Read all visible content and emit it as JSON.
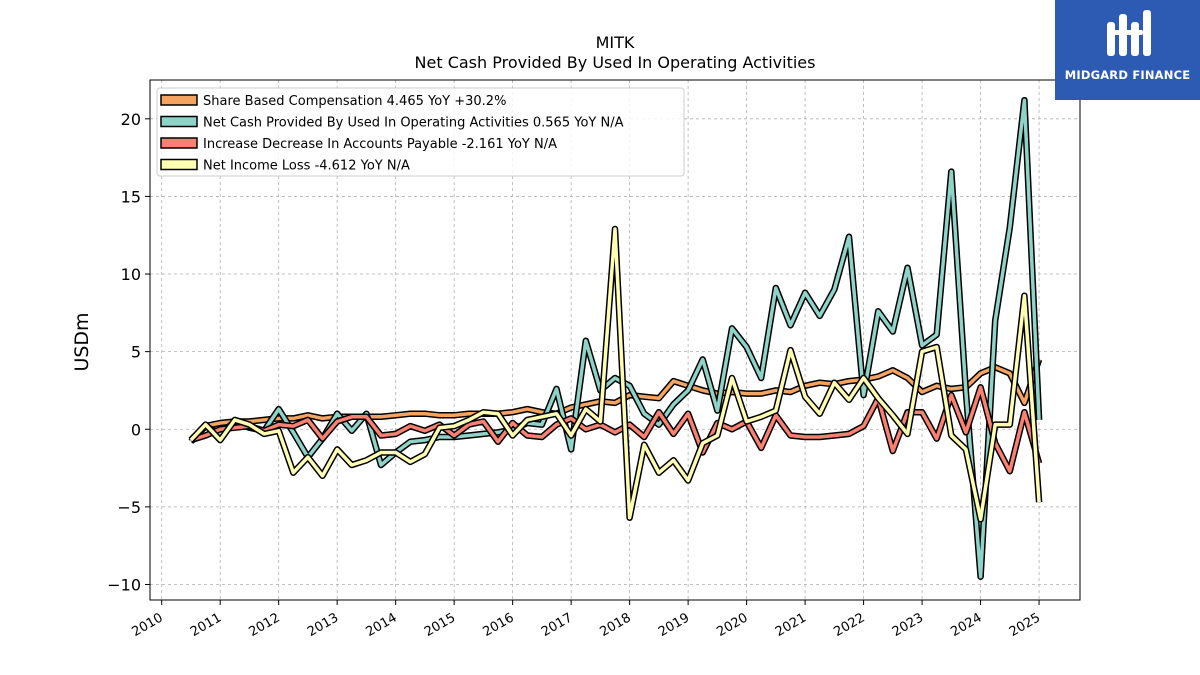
{
  "chart_data": {
    "type": "line",
    "title": "MITK",
    "subtitle": "Net Cash Provided By Used In Operating Activities",
    "ylabel": "USDm",
    "xlabel": "",
    "ylim": [
      -11,
      22.5
    ],
    "xlim": [
      2009.8,
      2025.7
    ],
    "yticks": [
      -10,
      -5,
      0,
      5,
      10,
      15,
      20
    ],
    "ytick_labels": [
      "−10",
      "−5",
      "0",
      "5",
      "10",
      "15",
      "20"
    ],
    "xticks": [
      2010,
      2011,
      2012,
      2013,
      2014,
      2015,
      2016,
      2017,
      2018,
      2019,
      2020,
      2021,
      2022,
      2023,
      2024,
      2025
    ],
    "xtick_labels": [
      "2010",
      "2011",
      "2012",
      "2013",
      "2014",
      "2015",
      "2016",
      "2017",
      "2018",
      "2019",
      "2020",
      "2021",
      "2022",
      "2023",
      "2024",
      "2025"
    ],
    "grid": true,
    "legend_position": "top-left",
    "series": [
      {
        "name": "Share Based Compensation",
        "legend": "Share Based Compensation  4.465 YoY +30.2%",
        "color": "#f4a460",
        "x": [
          2010.5,
          2010.75,
          2011.0,
          2011.25,
          2011.5,
          2011.75,
          2012.0,
          2012.25,
          2012.5,
          2012.75,
          2013.0,
          2013.25,
          2013.5,
          2013.75,
          2014.0,
          2014.25,
          2014.5,
          2014.75,
          2015.0,
          2015.25,
          2015.5,
          2015.75,
          2016.0,
          2016.25,
          2016.5,
          2016.75,
          2017.0,
          2017.25,
          2017.5,
          2017.75,
          2018.0,
          2018.25,
          2018.5,
          2018.75,
          2019.0,
          2019.25,
          2019.5,
          2019.75,
          2020.0,
          2020.25,
          2020.5,
          2020.75,
          2021.0,
          2021.25,
          2021.5,
          2021.75,
          2022.0,
          2022.25,
          2022.5,
          2022.75,
          2023.0,
          2023.25,
          2023.5,
          2023.75,
          2024.0,
          2024.25,
          2024.5,
          2024.75,
          2025.0
        ],
        "y": [
          -0.7,
          0.2,
          0.4,
          0.5,
          0.5,
          0.6,
          0.7,
          0.7,
          0.9,
          0.7,
          0.8,
          0.8,
          0.8,
          0.8,
          0.9,
          1.0,
          1.0,
          0.9,
          0.9,
          1.0,
          1.0,
          1.0,
          1.1,
          1.3,
          1.1,
          1.0,
          1.4,
          1.6,
          1.8,
          1.7,
          2.2,
          2.1,
          2.0,
          3.1,
          2.8,
          2.5,
          2.3,
          2.4,
          2.3,
          2.3,
          2.5,
          2.4,
          2.8,
          3.0,
          2.9,
          3.1,
          3.2,
          3.4,
          3.8,
          3.3,
          2.4,
          2.8,
          2.6,
          2.7,
          3.6,
          4.0,
          3.6,
          1.7,
          4.5
        ]
      },
      {
        "name": "Net Cash Provided By Used In Operating Activities",
        "legend": "Net Cash Provided By Used In Operating Activities  0.565 YoY N/A",
        "color": "#8dd3c7",
        "x": [
          2010.5,
          2010.75,
          2011.0,
          2011.25,
          2011.5,
          2011.75,
          2012.0,
          2012.25,
          2012.5,
          2012.75,
          2013.0,
          2013.25,
          2013.5,
          2013.75,
          2014.0,
          2014.25,
          2014.5,
          2014.75,
          2015.0,
          2015.25,
          2015.5,
          2015.75,
          2016.0,
          2016.25,
          2016.5,
          2016.75,
          2017.0,
          2017.25,
          2017.5,
          2017.75,
          2018.0,
          2018.25,
          2018.5,
          2018.75,
          2019.0,
          2019.25,
          2019.5,
          2019.75,
          2020.0,
          2020.25,
          2020.5,
          2020.75,
          2021.0,
          2021.25,
          2021.5,
          2021.75,
          2022.0,
          2022.25,
          2022.5,
          2022.75,
          2023.0,
          2023.25,
          2023.5,
          2023.75,
          2024.0,
          2024.25,
          2024.5,
          2024.75,
          2025.0
        ],
        "y": [
          -0.8,
          0.2,
          -0.3,
          0.5,
          0.1,
          -0.1,
          1.3,
          -0.2,
          -1.8,
          -0.6,
          1.0,
          -0.1,
          1.0,
          -2.3,
          -1.5,
          -0.8,
          -0.7,
          -0.5,
          -0.5,
          -0.4,
          -0.3,
          -0.2,
          0.0,
          0.4,
          0.3,
          2.6,
          -1.3,
          5.7,
          2.5,
          3.3,
          2.8,
          1.0,
          0.3,
          1.6,
          2.5,
          4.5,
          1.2,
          6.5,
          5.3,
          3.3,
          9.1,
          6.7,
          8.8,
          7.3,
          9.0,
          12.4,
          2.2,
          7.6,
          6.3,
          10.4,
          5.4,
          6.1,
          16.6,
          2.4,
          -9.5,
          7.0,
          13.0,
          21.2,
          0.6
        ]
      },
      {
        "name": "Increase Decrease In Accounts Payable",
        "legend": "Increase Decrease In Accounts Payable  -2.161 YoY N/A",
        "color": "#fa8072",
        "x": [
          2010.5,
          2010.75,
          2011.0,
          2011.25,
          2011.5,
          2011.75,
          2012.0,
          2012.25,
          2012.5,
          2012.75,
          2013.0,
          2013.25,
          2013.5,
          2013.75,
          2014.0,
          2014.25,
          2014.5,
          2014.75,
          2015.0,
          2015.25,
          2015.5,
          2015.75,
          2016.0,
          2016.25,
          2016.5,
          2016.75,
          2017.0,
          2017.25,
          2017.5,
          2017.75,
          2018.0,
          2018.25,
          2018.5,
          2018.75,
          2019.0,
          2019.25,
          2019.5,
          2019.75,
          2020.0,
          2020.25,
          2020.5,
          2020.75,
          2021.0,
          2021.25,
          2021.5,
          2021.75,
          2022.0,
          2022.25,
          2022.5,
          2022.75,
          2023.0,
          2023.25,
          2023.5,
          2023.75,
          2024.0,
          2024.25,
          2024.5,
          2024.75,
          2025.0
        ],
        "y": [
          -0.7,
          -0.4,
          0.0,
          0.1,
          0.2,
          -0.1,
          0.3,
          0.2,
          0.6,
          -0.6,
          0.5,
          0.8,
          0.8,
          -0.4,
          -0.3,
          0.2,
          -0.1,
          0.3,
          -0.4,
          0.3,
          0.5,
          -0.8,
          0.4,
          -0.4,
          -0.5,
          0.3,
          0.7,
          0.0,
          0.3,
          -0.2,
          0.3,
          -0.5,
          1.1,
          -0.3,
          1.0,
          -1.5,
          0.4,
          0.0,
          0.5,
          -1.2,
          0.9,
          -0.4,
          -0.5,
          -0.5,
          -0.4,
          -0.3,
          0.2,
          2.0,
          -1.4,
          1.1,
          1.1,
          -0.6,
          2.2,
          -0.2,
          2.7,
          -0.9,
          -2.7,
          1.1,
          -2.2
        ]
      },
      {
        "name": "Net Income Loss",
        "legend": "Net Income Loss  -4.612 YoY N/A",
        "color": "#ffffb3",
        "x": [
          2010.5,
          2010.75,
          2011.0,
          2011.25,
          2011.5,
          2011.75,
          2012.0,
          2012.25,
          2012.5,
          2012.75,
          2013.0,
          2013.25,
          2013.5,
          2013.75,
          2014.0,
          2014.25,
          2014.5,
          2014.75,
          2015.0,
          2015.25,
          2015.5,
          2015.75,
          2016.0,
          2016.25,
          2016.5,
          2016.75,
          2017.0,
          2017.25,
          2017.5,
          2017.75,
          2018.0,
          2018.25,
          2018.5,
          2018.75,
          2019.0,
          2019.25,
          2019.5,
          2019.75,
          2020.0,
          2020.25,
          2020.5,
          2020.75,
          2021.0,
          2021.25,
          2021.5,
          2021.75,
          2022.0,
          2022.25,
          2022.5,
          2022.75,
          2023.0,
          2023.25,
          2023.5,
          2023.75,
          2024.0,
          2024.25,
          2024.5,
          2024.75,
          2025.0
        ],
        "y": [
          -0.7,
          0.3,
          -0.7,
          0.6,
          0.3,
          -0.3,
          -0.1,
          -2.8,
          -1.8,
          -3.0,
          -1.3,
          -2.3,
          -2.0,
          -1.5,
          -1.5,
          -2.1,
          -1.6,
          0.1,
          0.2,
          0.6,
          1.1,
          1.0,
          -0.4,
          0.6,
          0.8,
          1.0,
          -0.4,
          1.3,
          0.5,
          12.9,
          -5.7,
          -1.0,
          -2.8,
          -2.0,
          -3.3,
          -0.9,
          -0.4,
          3.3,
          0.5,
          0.8,
          1.2,
          5.1,
          2.1,
          1.0,
          3.0,
          1.9,
          3.3,
          2.0,
          0.9,
          -0.3,
          5.0,
          5.3,
          -0.4,
          -1.3,
          -5.8,
          0.3,
          0.3,
          8.6,
          -4.7
        ]
      }
    ]
  },
  "branding": {
    "name": "MIDGARD FINANCE",
    "bg_color": "#2d5bb4"
  }
}
